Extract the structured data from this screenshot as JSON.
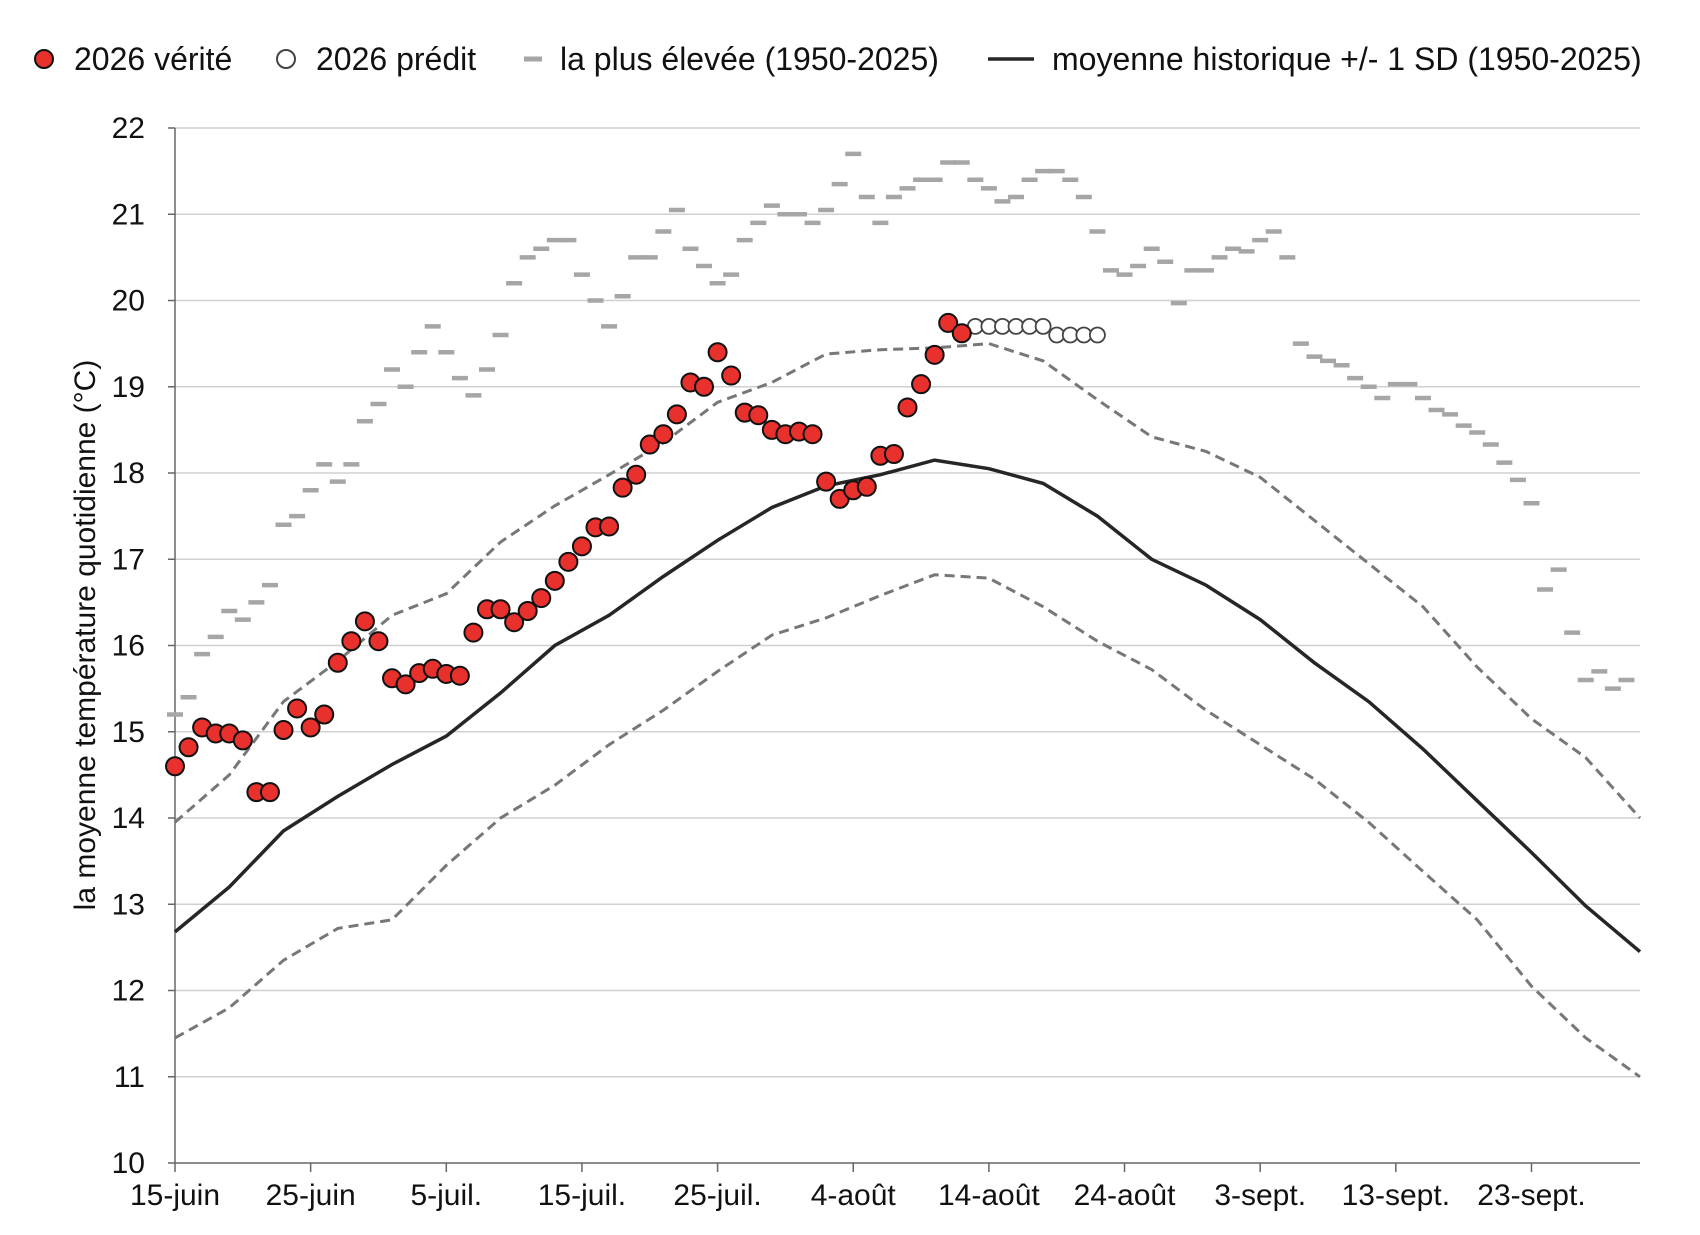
{
  "chart_data": {
    "type": "line",
    "ylabel": "la moyenne température quotidienne (°C)",
    "xlabel": "",
    "ylim": [
      10,
      22
    ],
    "yticks": [
      10,
      11,
      12,
      13,
      14,
      15,
      16,
      17,
      18,
      19,
      20,
      21,
      22
    ],
    "grid": true,
    "legend_position": "top",
    "x_tick_labels": [
      "15-juin",
      "25-juin",
      "5-juil.",
      "15-juil.",
      "25-juil.",
      "4-août",
      "14-août",
      "24-août",
      "3-sept.",
      "13-sept.",
      "23-sept."
    ],
    "x_range_days": [
      0,
      108
    ],
    "legend": [
      {
        "label": "2026 vérité",
        "symbol": "filled-red-circle"
      },
      {
        "label": "2026 prédit",
        "symbol": "open-circle"
      },
      {
        "label": "la plus élevée (1950-2025)",
        "symbol": "gray-dash"
      },
      {
        "label": "moyenne historique +/- 1 SD (1950-2025)",
        "symbol": "black-line"
      }
    ],
    "colors": {
      "observed_fill": "#e8302c",
      "observed_edge": "#111111",
      "predicted_fill": "#ffffff",
      "predicted_edge": "#444444",
      "record_high": "#a6a6a6",
      "mean": "#262626",
      "sd": "#777777",
      "grid": "#d0d0d0",
      "axis": "#666666"
    },
    "series": [
      {
        "name": "2026 vérité",
        "values": [
          [
            0,
            14.6
          ],
          [
            1,
            14.82
          ],
          [
            2,
            15.05
          ],
          [
            3,
            14.98
          ],
          [
            4,
            14.98
          ],
          [
            5,
            14.9
          ],
          [
            6,
            14.3
          ],
          [
            7,
            14.3
          ],
          [
            8,
            15.02
          ],
          [
            9,
            15.27
          ],
          [
            10,
            15.05
          ],
          [
            11,
            15.2
          ],
          [
            12,
            15.8
          ],
          [
            13,
            16.05
          ],
          [
            14,
            16.28
          ],
          [
            15,
            16.05
          ],
          [
            16,
            15.62
          ],
          [
            17,
            15.55
          ],
          [
            18,
            15.68
          ],
          [
            19,
            15.73
          ],
          [
            20,
            15.67
          ],
          [
            21,
            15.65
          ],
          [
            22,
            16.15
          ],
          [
            23,
            16.42
          ],
          [
            24,
            16.42
          ],
          [
            25,
            16.27
          ],
          [
            26,
            16.4
          ],
          [
            27,
            16.55
          ],
          [
            28,
            16.75
          ],
          [
            29,
            16.97
          ],
          [
            30,
            17.15
          ],
          [
            31,
            17.37
          ],
          [
            32,
            17.38
          ],
          [
            33,
            17.83
          ],
          [
            34,
            17.98
          ],
          [
            35,
            18.33
          ],
          [
            36,
            18.45
          ],
          [
            37,
            18.68
          ],
          [
            38,
            19.05
          ],
          [
            39,
            19.0
          ],
          [
            40,
            19.4
          ],
          [
            41,
            19.13
          ],
          [
            42,
            18.7
          ],
          [
            43,
            18.67
          ],
          [
            44,
            18.5
          ],
          [
            45,
            18.45
          ],
          [
            46,
            18.48
          ],
          [
            47,
            18.45
          ],
          [
            48,
            17.9
          ],
          [
            49,
            17.7
          ],
          [
            50,
            17.8
          ],
          [
            51,
            17.84
          ],
          [
            52,
            18.2
          ],
          [
            53,
            18.22
          ],
          [
            54,
            18.76
          ],
          [
            55,
            19.03
          ],
          [
            56,
            19.37
          ],
          [
            57,
            19.74
          ],
          [
            58,
            19.62
          ]
        ]
      },
      {
        "name": "2026 prédit",
        "values": [
          [
            59,
            19.7
          ],
          [
            60,
            19.7
          ],
          [
            61,
            19.7
          ],
          [
            62,
            19.7
          ],
          [
            63,
            19.7
          ],
          [
            64,
            19.7
          ],
          [
            65,
            19.6
          ],
          [
            66,
            19.6
          ],
          [
            67,
            19.6
          ],
          [
            68,
            19.6
          ]
        ]
      },
      {
        "name": "la plus élevée (1950-2025)",
        "values": [
          [
            0,
            15.2
          ],
          [
            1,
            15.4
          ],
          [
            2,
            15.9
          ],
          [
            3,
            16.1
          ],
          [
            4,
            16.4
          ],
          [
            5,
            16.3
          ],
          [
            6,
            16.5
          ],
          [
            7,
            16.7
          ],
          [
            8,
            17.4
          ],
          [
            9,
            17.5
          ],
          [
            10,
            17.8
          ],
          [
            11,
            18.1
          ],
          [
            12,
            17.9
          ],
          [
            13,
            18.1
          ],
          [
            14,
            18.6
          ],
          [
            15,
            18.8
          ],
          [
            16,
            19.2
          ],
          [
            17,
            19.0
          ],
          [
            18,
            19.4
          ],
          [
            19,
            19.7
          ],
          [
            20,
            19.4
          ],
          [
            21,
            19.1
          ],
          [
            22,
            18.9
          ],
          [
            23,
            19.2
          ],
          [
            24,
            19.6
          ],
          [
            25,
            20.2
          ],
          [
            26,
            20.5
          ],
          [
            27,
            20.6
          ],
          [
            28,
            20.7
          ],
          [
            29,
            20.7
          ],
          [
            30,
            20.3
          ],
          [
            31,
            20.0
          ],
          [
            32,
            19.7
          ],
          [
            33,
            20.05
          ],
          [
            34,
            20.5
          ],
          [
            35,
            20.5
          ],
          [
            36,
            20.8
          ],
          [
            37,
            21.05
          ],
          [
            38,
            20.6
          ],
          [
            39,
            20.4
          ],
          [
            40,
            20.2
          ],
          [
            41,
            20.3
          ],
          [
            42,
            20.7
          ],
          [
            43,
            20.9
          ],
          [
            44,
            21.1
          ],
          [
            45,
            21.0
          ],
          [
            46,
            21.0
          ],
          [
            47,
            20.9
          ],
          [
            48,
            21.05
          ],
          [
            49,
            21.35
          ],
          [
            50,
            21.7
          ],
          [
            51,
            21.2
          ],
          [
            52,
            20.9
          ],
          [
            53,
            21.2
          ],
          [
            54,
            21.3
          ],
          [
            55,
            21.4
          ],
          [
            56,
            21.4
          ],
          [
            57,
            21.6
          ],
          [
            58,
            21.6
          ],
          [
            59,
            21.4
          ],
          [
            60,
            21.3
          ],
          [
            61,
            21.15
          ],
          [
            62,
            21.2
          ],
          [
            63,
            21.4
          ],
          [
            64,
            21.5
          ],
          [
            65,
            21.5
          ],
          [
            66,
            21.4
          ],
          [
            67,
            21.2
          ],
          [
            68,
            20.8
          ],
          [
            69,
            20.35
          ],
          [
            70,
            20.3
          ],
          [
            71,
            20.4
          ],
          [
            72,
            20.6
          ],
          [
            73,
            20.45
          ],
          [
            74,
            19.97
          ],
          [
            75,
            20.35
          ],
          [
            76,
            20.35
          ],
          [
            77,
            20.5
          ],
          [
            78,
            20.6
          ],
          [
            79,
            20.57
          ],
          [
            80,
            20.7
          ],
          [
            81,
            20.8
          ],
          [
            82,
            20.5
          ],
          [
            83,
            19.5
          ],
          [
            84,
            19.35
          ],
          [
            85,
            19.3
          ],
          [
            86,
            19.25
          ],
          [
            87,
            19.1
          ],
          [
            88,
            19.0
          ],
          [
            89,
            18.87
          ],
          [
            90,
            19.03
          ],
          [
            91,
            19.03
          ],
          [
            92,
            18.87
          ],
          [
            93,
            18.73
          ],
          [
            94,
            18.68
          ],
          [
            95,
            18.55
          ],
          [
            96,
            18.47
          ],
          [
            97,
            18.33
          ],
          [
            98,
            18.12
          ],
          [
            99,
            17.92
          ],
          [
            100,
            17.65
          ],
          [
            101,
            16.65
          ],
          [
            102,
            16.88
          ],
          [
            103,
            16.15
          ],
          [
            104,
            15.6
          ],
          [
            105,
            15.7
          ],
          [
            106,
            15.5
          ],
          [
            107,
            15.6
          ]
        ]
      },
      {
        "name": "moyenne historique +/- 1 SD (1950-2025)",
        "values": [
          [
            0,
            12.68
          ],
          [
            4,
            13.2
          ],
          [
            8,
            13.85
          ],
          [
            12,
            14.25
          ],
          [
            16,
            14.62
          ],
          [
            20,
            14.95
          ],
          [
            24,
            15.45
          ],
          [
            28,
            16.0
          ],
          [
            32,
            16.35
          ],
          [
            36,
            16.8
          ],
          [
            40,
            17.22
          ],
          [
            44,
            17.6
          ],
          [
            48,
            17.85
          ],
          [
            52,
            17.98
          ],
          [
            56,
            18.15
          ],
          [
            60,
            18.05
          ],
          [
            64,
            17.88
          ],
          [
            68,
            17.5
          ],
          [
            72,
            17.0
          ],
          [
            76,
            16.7
          ],
          [
            80,
            16.3
          ],
          [
            84,
            15.8
          ],
          [
            88,
            15.35
          ],
          [
            92,
            14.8
          ],
          [
            96,
            14.2
          ],
          [
            100,
            13.6
          ],
          [
            104,
            12.98
          ],
          [
            108,
            12.45
          ]
        ]
      },
      {
        "name": "",
        "values": [
          [
            0,
            13.95
          ],
          [
            4,
            14.5
          ],
          [
            8,
            15.35
          ],
          [
            12,
            15.82
          ],
          [
            16,
            16.35
          ],
          [
            20,
            16.6
          ],
          [
            24,
            17.2
          ],
          [
            28,
            17.62
          ],
          [
            32,
            17.98
          ],
          [
            36,
            18.35
          ],
          [
            40,
            18.82
          ],
          [
            44,
            19.05
          ],
          [
            48,
            19.38
          ],
          [
            52,
            19.43
          ],
          [
            56,
            19.45
          ],
          [
            60,
            19.5
          ],
          [
            64,
            19.3
          ],
          [
            68,
            18.85
          ],
          [
            72,
            18.42
          ],
          [
            76,
            18.25
          ],
          [
            80,
            17.95
          ],
          [
            84,
            17.45
          ],
          [
            88,
            16.95
          ],
          [
            92,
            16.45
          ],
          [
            96,
            15.75
          ],
          [
            100,
            15.15
          ],
          [
            104,
            14.7
          ],
          [
            108,
            14.0
          ]
        ]
      },
      {
        "name": "",
        "values": [
          [
            0,
            11.45
          ],
          [
            4,
            11.8
          ],
          [
            8,
            12.35
          ],
          [
            12,
            12.72
          ],
          [
            16,
            12.82
          ],
          [
            20,
            13.45
          ],
          [
            24,
            14.0
          ],
          [
            28,
            14.38
          ],
          [
            32,
            14.85
          ],
          [
            36,
            15.25
          ],
          [
            40,
            15.7
          ],
          [
            44,
            16.12
          ],
          [
            48,
            16.32
          ],
          [
            52,
            16.58
          ],
          [
            56,
            16.82
          ],
          [
            60,
            16.78
          ],
          [
            64,
            16.45
          ],
          [
            68,
            16.05
          ],
          [
            72,
            15.72
          ],
          [
            76,
            15.25
          ],
          [
            80,
            14.85
          ],
          [
            84,
            14.45
          ],
          [
            88,
            13.95
          ],
          [
            92,
            13.38
          ],
          [
            96,
            12.82
          ],
          [
            100,
            12.05
          ],
          [
            104,
            11.45
          ],
          [
            108,
            11.0
          ]
        ]
      }
    ]
  }
}
